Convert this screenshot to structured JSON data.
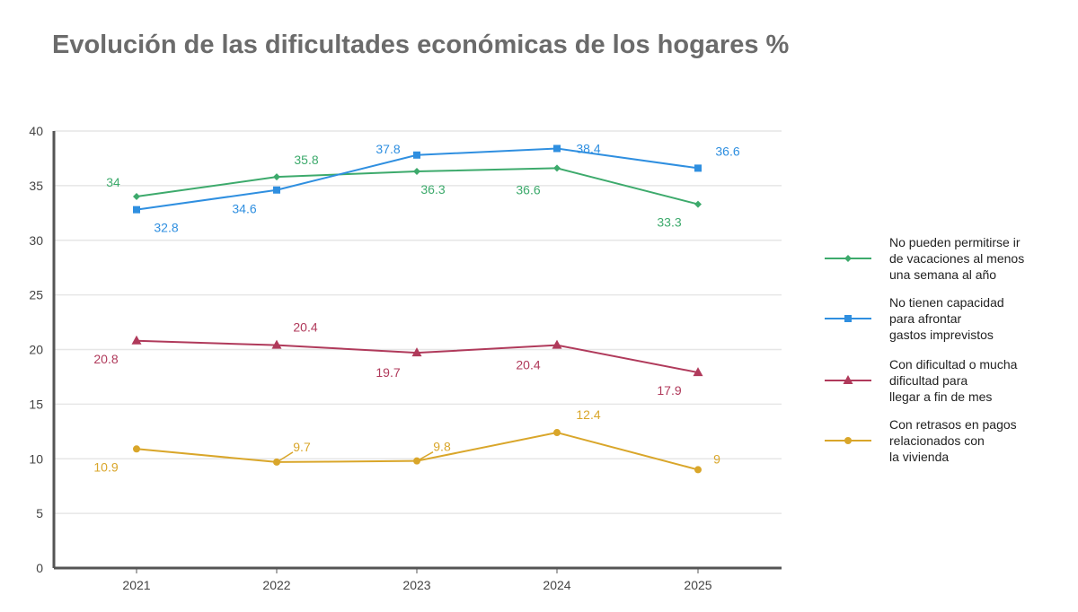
{
  "title": "Evolución de las dificultades económicas de los hogares %",
  "chart_data": {
    "type": "line",
    "title": "Evolución de las dificultades económicas de los hogares %",
    "categories": [
      "2021",
      "2022",
      "2023",
      "2024",
      "2025"
    ],
    "ylim": [
      0,
      40
    ],
    "yticks": [
      "0",
      "5",
      "10",
      "15",
      "20",
      "25",
      "30",
      "35",
      "40"
    ],
    "grid": true,
    "legend": "right",
    "series": [
      {
        "name": "No pueden permitirse ir de vacaciones al menos una semana al año",
        "values": [
          34,
          35.8,
          36.3,
          36.6,
          33.3
        ],
        "color": "#3daa6c",
        "marker": "diamond"
      },
      {
        "name": "No tienen capacidad para afrontar gastos imprevistos",
        "values": [
          32.8,
          34.6,
          37.8,
          38.4,
          36.6
        ],
        "color": "#2f8fe0",
        "marker": "square"
      },
      {
        "name": "Con dificultad o mucha dificultad para llegar a fin de mes",
        "values": [
          20.8,
          20.4,
          19.7,
          20.4,
          17.9
        ],
        "color": "#b03a5b",
        "marker": "triangle"
      },
      {
        "name": "Con retrasos en pagos relacionados con la vivienda",
        "values": [
          10.9,
          9.7,
          9.8,
          12.4,
          9
        ],
        "color": "#d9a62a",
        "marker": "circle"
      }
    ],
    "legend_lines": [
      [
        "No pueden permitirse ir",
        "de vacaciones al menos",
        "una semana al año"
      ],
      [
        "No tienen capacidad",
        "para afrontar",
        "gastos imprevistos"
      ],
      [
        "Con dificultad o mucha",
        "dificultad para",
        "llegar a fin de mes"
      ],
      [
        "Con retrasos en pagos",
        "relacionados con",
        "la vivienda"
      ]
    ]
  }
}
